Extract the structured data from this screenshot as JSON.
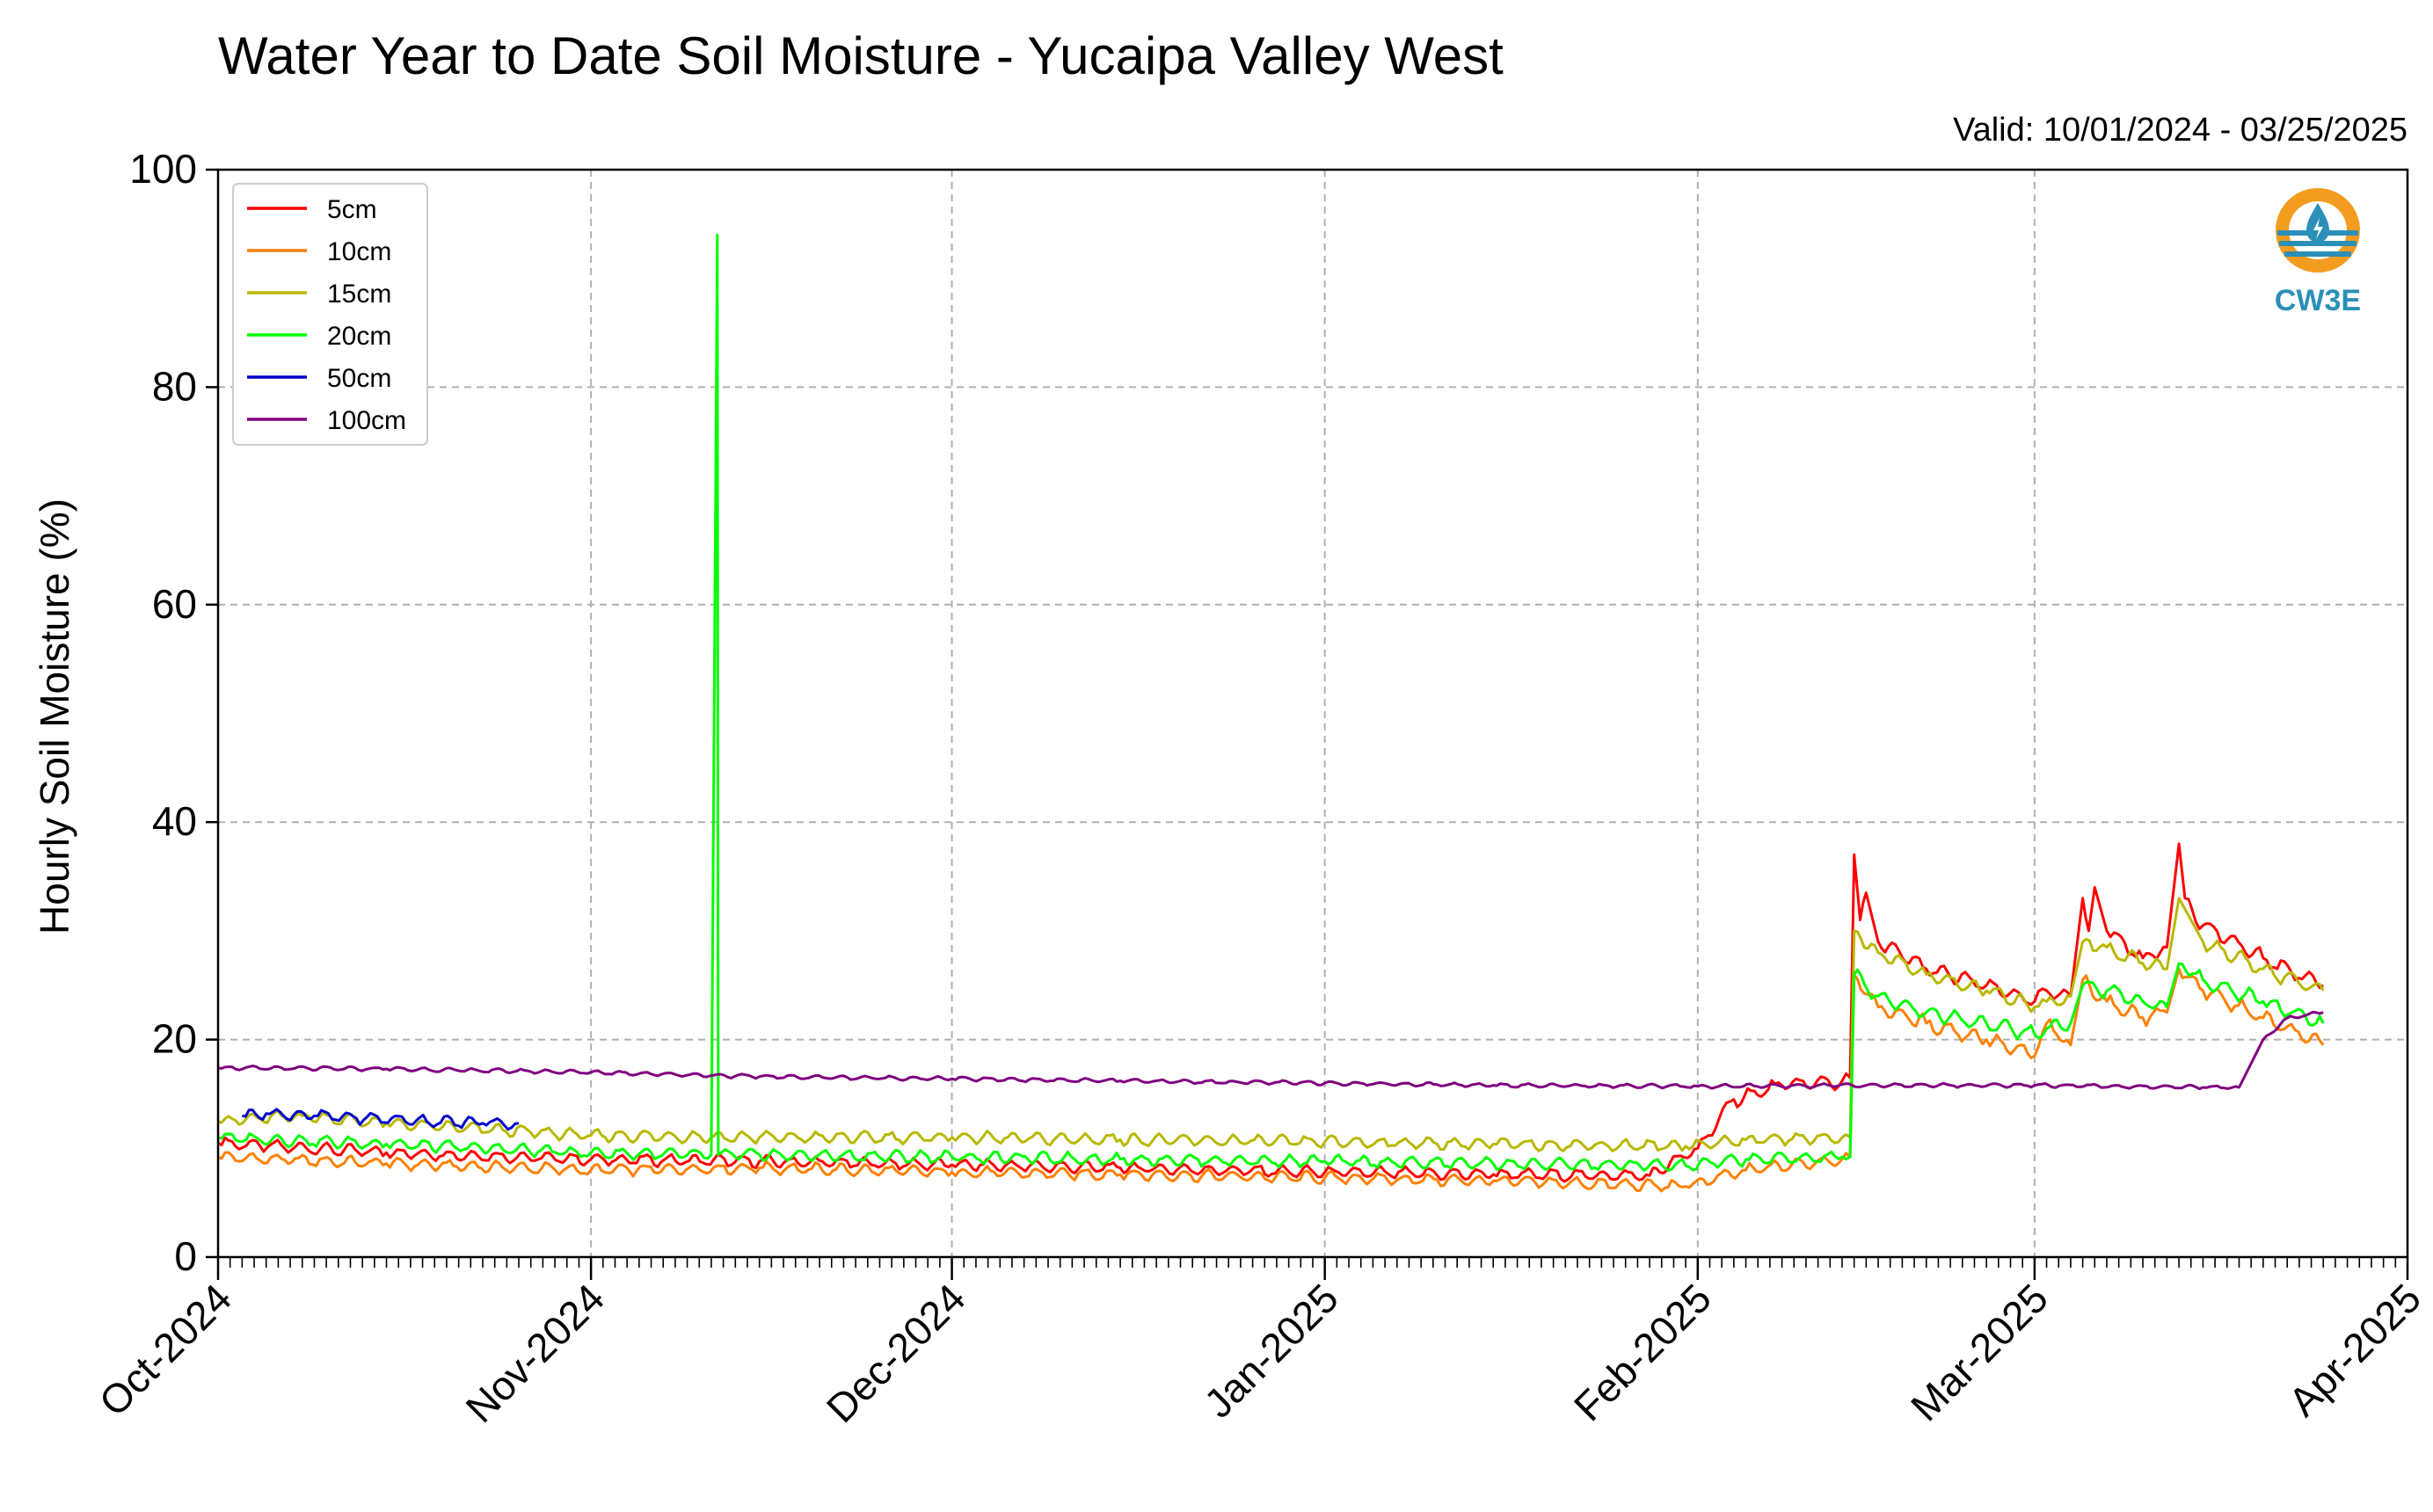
{
  "chart_data": {
    "type": "line",
    "title": "Water Year to Date Soil Moisture - Yucaipa Valley West",
    "subtitle": "Valid: 10/01/2024 - 03/25/2025",
    "ylabel": "Hourly Soil Moisture (%)",
    "xlabel": "",
    "ylim": [
      0,
      100
    ],
    "xlim": [
      "2024-10-01",
      "2025-04-01"
    ],
    "y_ticks": [
      "0",
      "20",
      "40",
      "60",
      "80",
      "100"
    ],
    "x_ticks": [
      {
        "date": "2024-10-01",
        "label": "Oct-2024"
      },
      {
        "date": "2024-11-01",
        "label": "Nov-2024"
      },
      {
        "date": "2024-12-01",
        "label": "Dec-2024"
      },
      {
        "date": "2025-01-01",
        "label": "Jan-2025"
      },
      {
        "date": "2025-02-01",
        "label": "Feb-2025"
      },
      {
        "date": "2025-03-01",
        "label": "Mar-2025"
      },
      {
        "date": "2025-04-01",
        "label": "Apr-2025"
      }
    ],
    "grid": true,
    "legend_position": "top-left",
    "series": [
      {
        "name": "5cm",
        "color": "#ff0000",
        "points": [
          [
            "2024-10-01",
            10.5
          ],
          [
            "2024-10-15",
            9.6
          ],
          [
            "2024-11-01",
            9.0
          ],
          [
            "2024-11-15",
            8.8
          ],
          [
            "2024-12-01",
            8.5
          ],
          [
            "2024-12-15",
            8.2
          ],
          [
            "2025-01-01",
            7.8
          ],
          [
            "2025-01-15",
            7.6
          ],
          [
            "2025-01-28",
            7.5
          ],
          [
            "2025-02-01",
            10.0
          ],
          [
            "2025-02-04",
            14.5
          ],
          [
            "2025-02-08",
            15.8
          ],
          [
            "2025-02-13",
            16.2
          ],
          [
            "2025-02-13T16:00",
            16.5
          ],
          [
            "2025-02-14",
            37.0
          ],
          [
            "2025-02-14T12:00",
            31.0
          ],
          [
            "2025-02-15",
            33.5
          ],
          [
            "2025-02-16",
            29.0
          ],
          [
            "2025-02-20",
            26.5
          ],
          [
            "2025-02-25",
            25.0
          ],
          [
            "2025-03-01",
            23.5
          ],
          [
            "2025-03-02",
            24.5
          ],
          [
            "2025-03-04",
            24.0
          ],
          [
            "2025-03-05",
            33.0
          ],
          [
            "2025-03-05T12:00",
            30.0
          ],
          [
            "2025-03-06",
            34.0
          ],
          [
            "2025-03-07",
            30.0
          ],
          [
            "2025-03-10",
            27.5
          ],
          [
            "2025-03-12",
            28.5
          ],
          [
            "2025-03-13",
            38.0
          ],
          [
            "2025-03-13T12:00",
            33.0
          ],
          [
            "2025-03-15",
            30.5
          ],
          [
            "2025-03-20",
            27.5
          ],
          [
            "2025-03-25",
            25.0
          ]
        ]
      },
      {
        "name": "10cm",
        "color": "#ff8000",
        "points": [
          [
            "2024-10-01",
            9.2
          ],
          [
            "2024-10-15",
            8.6
          ],
          [
            "2024-11-01",
            8.0
          ],
          [
            "2024-11-15",
            8.2
          ],
          [
            "2024-12-01",
            7.8
          ],
          [
            "2024-12-15",
            7.6
          ],
          [
            "2025-01-01",
            7.3
          ],
          [
            "2025-01-15",
            7.0
          ],
          [
            "2025-01-31",
            6.5
          ],
          [
            "2025-02-05",
            8.0
          ],
          [
            "2025-02-13",
            9.0
          ],
          [
            "2025-02-13T16:00",
            9.2
          ],
          [
            "2025-02-14",
            26.0
          ],
          [
            "2025-02-16",
            23.0
          ],
          [
            "2025-02-20",
            21.5
          ],
          [
            "2025-02-25",
            20.0
          ],
          [
            "2025-03-01",
            18.5
          ],
          [
            "2025-03-02",
            21.5
          ],
          [
            "2025-03-04",
            19.5
          ],
          [
            "2025-03-05",
            25.5
          ],
          [
            "2025-03-07",
            23.5
          ],
          [
            "2025-03-10",
            22.0
          ],
          [
            "2025-03-12",
            22.5
          ],
          [
            "2025-03-13",
            26.5
          ],
          [
            "2025-03-15",
            24.5
          ],
          [
            "2025-03-20",
            22.0
          ],
          [
            "2025-03-25",
            19.5
          ]
        ]
      },
      {
        "name": "15cm",
        "color": "#b8b800",
        "points": [
          [
            "2024-10-01",
            12.5
          ],
          [
            "2024-10-08",
            13.0
          ],
          [
            "2024-10-15",
            12.3
          ],
          [
            "2024-11-01",
            11.2
          ],
          [
            "2024-11-15",
            11.0
          ],
          [
            "2024-12-01",
            11.0
          ],
          [
            "2024-12-15",
            10.8
          ],
          [
            "2025-01-01",
            10.6
          ],
          [
            "2025-01-15",
            10.4
          ],
          [
            "2025-01-31",
            10.2
          ],
          [
            "2025-02-05",
            10.8
          ],
          [
            "2025-02-13",
            11.0
          ],
          [
            "2025-02-13T16:00",
            11.0
          ],
          [
            "2025-02-14",
            30.0
          ],
          [
            "2025-02-16",
            28.0
          ],
          [
            "2025-02-20",
            26.0
          ],
          [
            "2025-02-25",
            24.5
          ],
          [
            "2025-03-01",
            23.0
          ],
          [
            "2025-03-02",
            23.5
          ],
          [
            "2025-03-04",
            24.0
          ],
          [
            "2025-03-05",
            29.0
          ],
          [
            "2025-03-07",
            28.5
          ],
          [
            "2025-03-10",
            27.0
          ],
          [
            "2025-03-12",
            26.5
          ],
          [
            "2025-03-13",
            33.0
          ],
          [
            "2025-03-15",
            29.0
          ],
          [
            "2025-03-20",
            26.5
          ],
          [
            "2025-03-25",
            24.5
          ]
        ]
      },
      {
        "name": "20cm",
        "color": "#00ff00",
        "points": [
          [
            "2024-10-01",
            11.0
          ],
          [
            "2024-10-15",
            10.4
          ],
          [
            "2024-11-01",
            9.6
          ],
          [
            "2024-11-11",
            9.4
          ],
          [
            "2024-11-11T12:00",
            94.0
          ],
          [
            "2024-11-11T14:00",
            9.4
          ],
          [
            "2024-11-15",
            9.4
          ],
          [
            "2024-12-01",
            9.2
          ],
          [
            "2024-12-15",
            9.0
          ],
          [
            "2025-01-01",
            8.8
          ],
          [
            "2025-01-15",
            8.6
          ],
          [
            "2025-01-31",
            8.4
          ],
          [
            "2025-02-05",
            9.0
          ],
          [
            "2025-02-13",
            9.2
          ],
          [
            "2025-02-13T16:00",
            9.2
          ],
          [
            "2025-02-14",
            26.0
          ],
          [
            "2025-02-16",
            24.0
          ],
          [
            "2025-02-20",
            22.5
          ],
          [
            "2025-02-25",
            21.5
          ],
          [
            "2025-03-01",
            20.5
          ],
          [
            "2025-03-02",
            21.0
          ],
          [
            "2025-03-04",
            21.5
          ],
          [
            "2025-03-05",
            25.0
          ],
          [
            "2025-03-07",
            24.5
          ],
          [
            "2025-03-10",
            23.5
          ],
          [
            "2025-03-12",
            23.0
          ],
          [
            "2025-03-13",
            27.0
          ],
          [
            "2025-03-15",
            25.5
          ],
          [
            "2025-03-20",
            23.5
          ],
          [
            "2025-03-25",
            21.5
          ]
        ]
      },
      {
        "name": "50cm",
        "color": "#0000cc",
        "points": [
          [
            "2024-10-03",
            13.0
          ],
          [
            "2024-10-05",
            13.2
          ],
          [
            "2024-10-09",
            13.0
          ],
          [
            "2024-10-23",
            12.3
          ],
          [
            "2024-10-26",
            12.3
          ]
        ]
      },
      {
        "name": "100cm",
        "color": "#800080",
        "points": [
          [
            "2024-10-01",
            17.4
          ],
          [
            "2024-10-15",
            17.3
          ],
          [
            "2024-11-01",
            17.0
          ],
          [
            "2024-11-15",
            16.6
          ],
          [
            "2024-12-01",
            16.4
          ],
          [
            "2024-12-15",
            16.2
          ],
          [
            "2025-01-01",
            16.0
          ],
          [
            "2025-01-15",
            15.8
          ],
          [
            "2025-02-01",
            15.7
          ],
          [
            "2025-02-15",
            15.8
          ],
          [
            "2025-03-01",
            15.8
          ],
          [
            "2025-03-15",
            15.6
          ],
          [
            "2025-03-18",
            15.6
          ],
          [
            "2025-03-20",
            20.0
          ],
          [
            "2025-03-22",
            22.0
          ],
          [
            "2025-03-25",
            22.5
          ]
        ]
      }
    ]
  },
  "logo": {
    "text": "CW3E",
    "color_orange": "#f39c1f",
    "color_blue": "#2b8fb8"
  }
}
